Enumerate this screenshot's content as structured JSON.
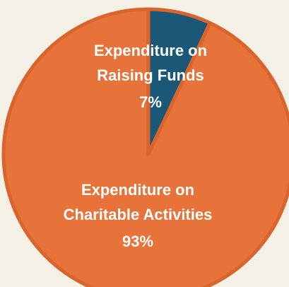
{
  "chart_data": {
    "type": "pie",
    "categories": [
      "Expenditure on Raising Funds",
      "Expenditure on Charitable Activities"
    ],
    "values": [
      7,
      93
    ],
    "value_labels": [
      "7%",
      "93%"
    ],
    "colors": [
      "#1b5877",
      "#e8733a"
    ]
  }
}
